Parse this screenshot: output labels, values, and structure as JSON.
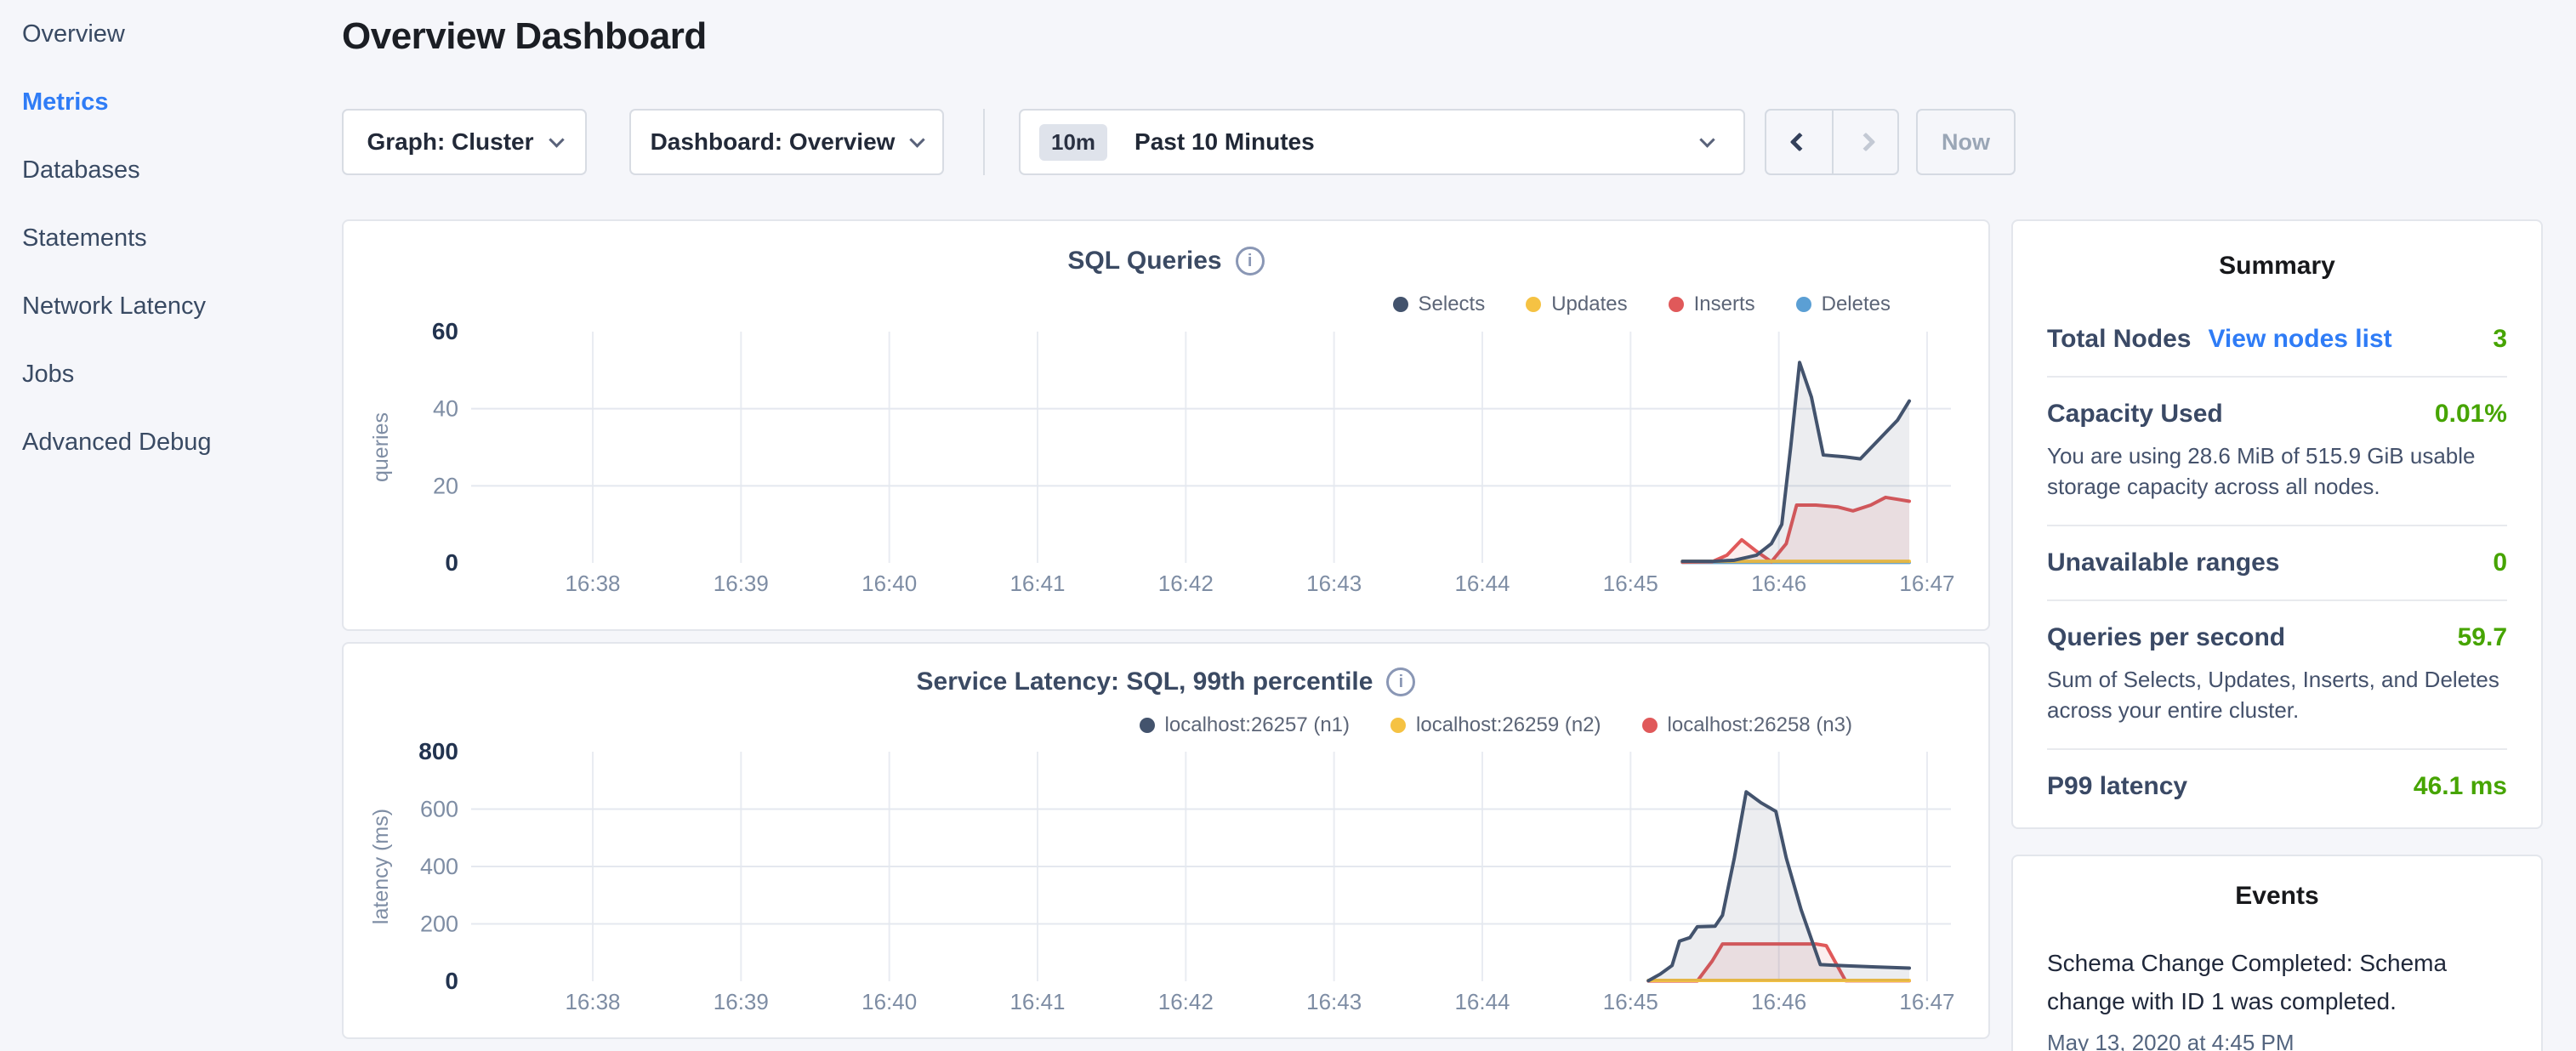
{
  "colors": {
    "accent_blue": "#2f7cf6",
    "positive_green": "#46a400"
  },
  "icons": {
    "info_glyph": "i"
  },
  "sidebar": {
    "items": [
      {
        "label": "Overview",
        "active": false
      },
      {
        "label": "Metrics",
        "active": true
      },
      {
        "label": "Databases",
        "active": false
      },
      {
        "label": "Statements",
        "active": false
      },
      {
        "label": "Network Latency",
        "active": false
      },
      {
        "label": "Jobs",
        "active": false
      },
      {
        "label": "Advanced Debug",
        "active": false
      }
    ]
  },
  "header": {
    "title": "Overview Dashboard"
  },
  "controls": {
    "graph_dropdown": "Graph: Cluster",
    "dashboard_dropdown": "Dashboard: Overview",
    "time_badge": "10m",
    "time_label": "Past 10 Minutes",
    "now_label": "Now"
  },
  "chart_data": [
    {
      "type": "area",
      "title": "SQL Queries",
      "ylabel": "queries",
      "ylim": [
        0,
        60
      ],
      "yticks": [
        0,
        20,
        40,
        60
      ],
      "xticks": [
        38,
        39,
        40,
        41,
        42,
        43,
        44,
        45,
        46,
        47
      ],
      "xticklabels": [
        "16:38",
        "16:39",
        "16:40",
        "16:41",
        "16:42",
        "16:43",
        "16:44",
        "16:45",
        "16:46",
        "16:47"
      ],
      "legend_position": "top-right",
      "grid": true,
      "series": [
        {
          "name": "Selects",
          "color": "#43536d",
          "fill": "rgba(67,83,109,0.10)",
          "points": [
            [
              45.35,
              0.4
            ],
            [
              45.55,
              0.4
            ],
            [
              45.7,
              0.7
            ],
            [
              45.85,
              2
            ],
            [
              45.95,
              5
            ],
            [
              46.02,
              10
            ],
            [
              46.08,
              30
            ],
            [
              46.14,
              52
            ],
            [
              46.22,
              43
            ],
            [
              46.3,
              28
            ],
            [
              46.45,
              27.5
            ],
            [
              46.55,
              27
            ],
            [
              46.65,
              31
            ],
            [
              46.8,
              37
            ],
            [
              46.88,
              42
            ]
          ]
        },
        {
          "name": "Updates",
          "color": "#f5c243",
          "fill": "none",
          "points": [
            [
              45.35,
              0.4
            ],
            [
              46.88,
              0.4
            ]
          ]
        },
        {
          "name": "Inserts",
          "color": "#e0595a",
          "fill": "rgba(224,89,90,0.10)",
          "points": [
            [
              45.35,
              0.2
            ],
            [
              45.55,
              0.3
            ],
            [
              45.65,
              2
            ],
            [
              45.75,
              6
            ],
            [
              45.85,
              3
            ],
            [
              45.95,
              0.3
            ],
            [
              46.05,
              5
            ],
            [
              46.12,
              15
            ],
            [
              46.25,
              15
            ],
            [
              46.4,
              14.5
            ],
            [
              46.5,
              13.5
            ],
            [
              46.62,
              15
            ],
            [
              46.72,
              17
            ],
            [
              46.8,
              16.5
            ],
            [
              46.88,
              16
            ]
          ]
        },
        {
          "name": "Deletes",
          "color": "#5b9fd4",
          "fill": "none",
          "points": [
            [
              45.35,
              0.15
            ],
            [
              46.88,
              0.15
            ]
          ]
        }
      ]
    },
    {
      "type": "area",
      "title": "Service Latency: SQL, 99th percentile",
      "ylabel": "latency (ms)",
      "ylim": [
        0,
        800
      ],
      "yticks": [
        0,
        200,
        400,
        600,
        800
      ],
      "xticks": [
        38,
        39,
        40,
        41,
        42,
        43,
        44,
        45,
        46,
        47
      ],
      "xticklabels": [
        "16:38",
        "16:39",
        "16:40",
        "16:41",
        "16:42",
        "16:43",
        "16:44",
        "16:45",
        "16:46",
        "16:47"
      ],
      "legend_position": "top-right",
      "grid": true,
      "series": [
        {
          "name": "localhost:26257 (n1)",
          "color": "#43536d",
          "fill": "rgba(67,83,109,0.10)",
          "points": [
            [
              45.12,
              2
            ],
            [
              45.2,
              25
            ],
            [
              45.28,
              55
            ],
            [
              45.33,
              140
            ],
            [
              45.4,
              152
            ],
            [
              45.45,
              190
            ],
            [
              45.57,
              192
            ],
            [
              45.62,
              230
            ],
            [
              45.7,
              430
            ],
            [
              45.78,
              660
            ],
            [
              45.88,
              622
            ],
            [
              45.98,
              592
            ],
            [
              46.05,
              430
            ],
            [
              46.15,
              250
            ],
            [
              46.28,
              58
            ],
            [
              46.45,
              54
            ],
            [
              46.65,
              50
            ],
            [
              46.88,
              46
            ]
          ]
        },
        {
          "name": "localhost:26259 (n2)",
          "color": "#f5c243",
          "fill": "none",
          "points": [
            [
              45.12,
              3
            ],
            [
              46.88,
              3
            ]
          ]
        },
        {
          "name": "localhost:26258 (n3)",
          "color": "#e0595a",
          "fill": "rgba(224,89,90,0.10)",
          "points": [
            [
              45.12,
              1
            ],
            [
              45.45,
              1
            ],
            [
              45.55,
              70
            ],
            [
              45.62,
              130
            ],
            [
              46.25,
              130
            ],
            [
              46.32,
              124
            ],
            [
              46.45,
              2
            ],
            [
              46.88,
              2
            ]
          ]
        }
      ]
    }
  ],
  "summary": {
    "heading": "Summary",
    "rows": [
      {
        "label": "Total Nodes",
        "link": "View nodes list",
        "value": "3"
      },
      {
        "label": "Capacity Used",
        "value": "0.01%",
        "description": "You are using 28.6 MiB of 515.9 GiB usable storage capacity across all nodes."
      },
      {
        "label": "Unavailable ranges",
        "value": "0"
      },
      {
        "label": "Queries per second",
        "value": "59.7",
        "description": "Sum of Selects, Updates, Inserts, and Deletes across your entire cluster."
      },
      {
        "label": "P99 latency",
        "value": "46.1 ms"
      }
    ]
  },
  "events": {
    "heading": "Events",
    "items": [
      {
        "text": "Schema Change Completed: Schema change with ID 1 was completed.",
        "timestamp": "May 13, 2020 at 4:45 PM"
      }
    ]
  }
}
